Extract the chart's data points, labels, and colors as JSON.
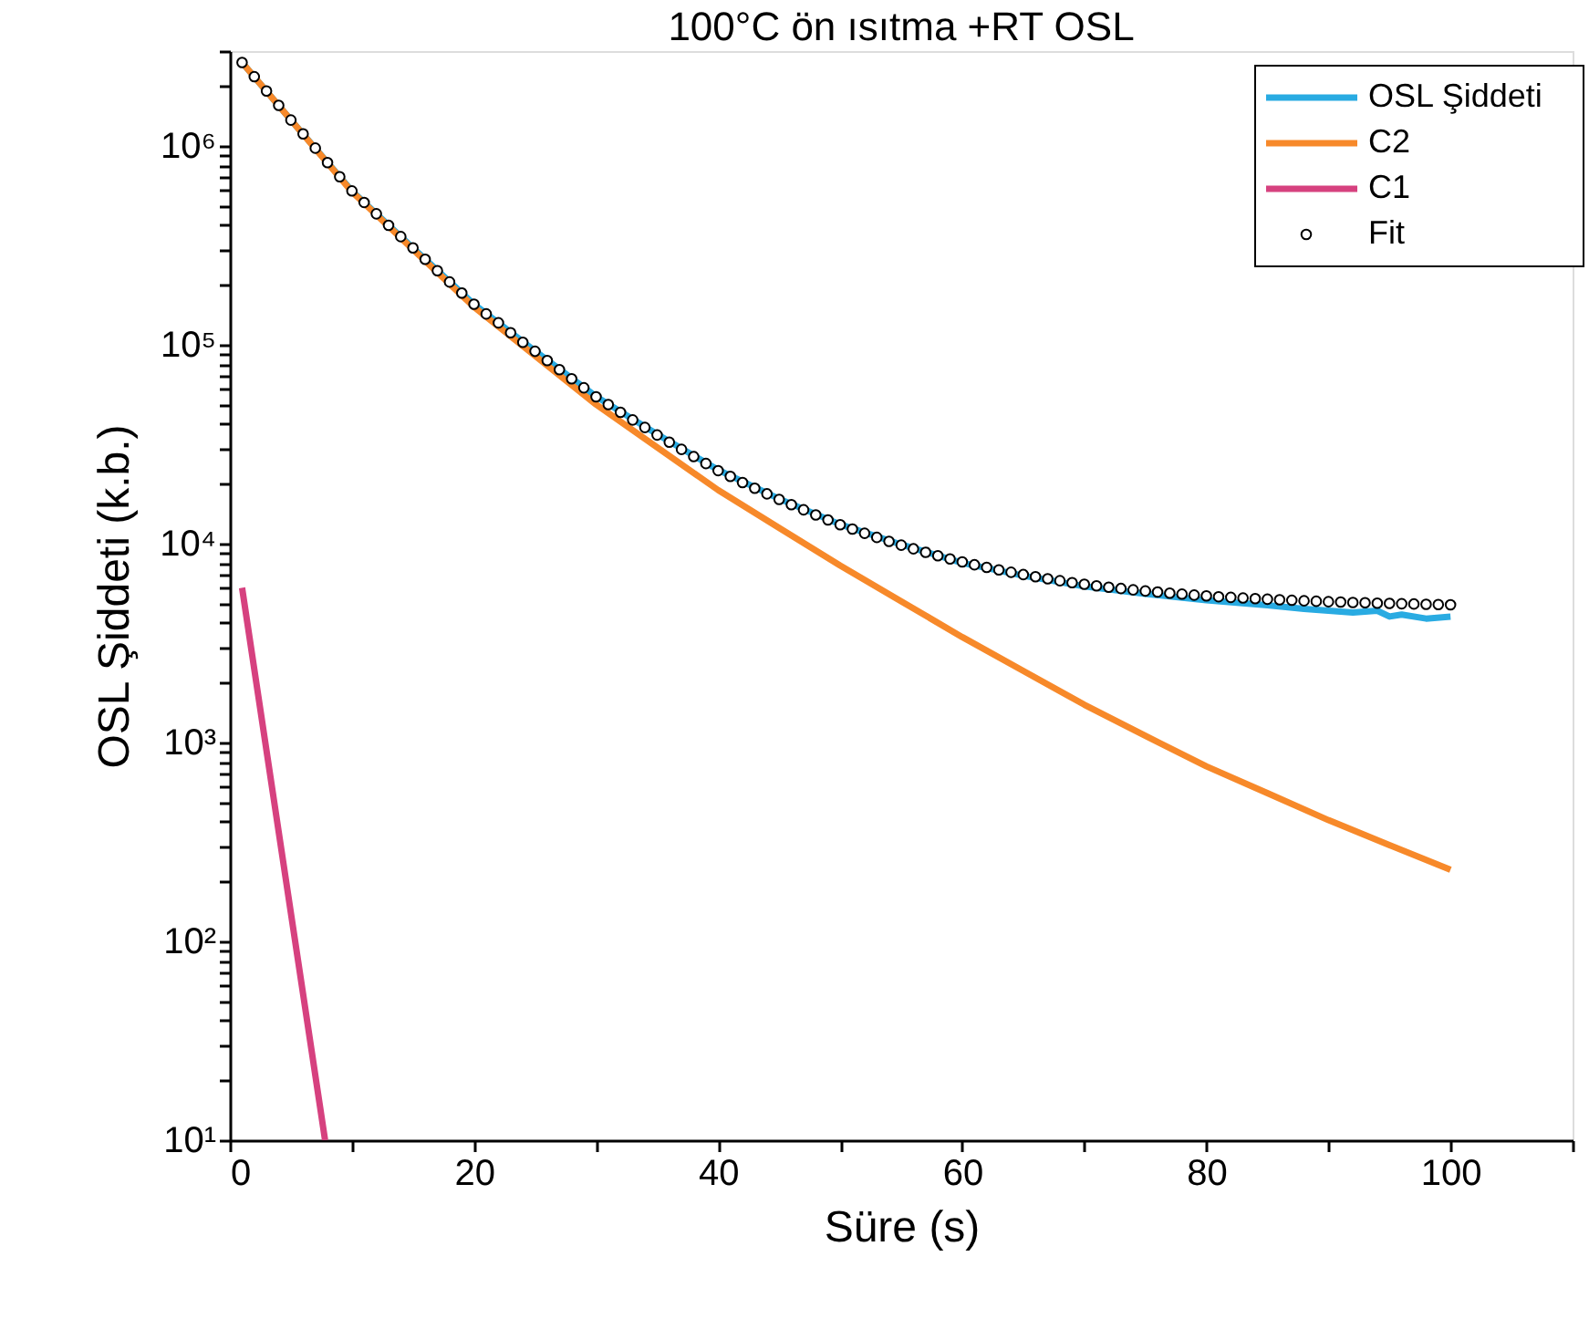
{
  "chart_data": {
    "type": "line",
    "title": "100°C ön ısıtma +RT OSL",
    "xlabel": "Süre (s)",
    "ylabel": "OSL Şiddeti (k.b.)",
    "log": "y",
    "grid": false,
    "legend": "top right",
    "xlim": [
      0,
      110
    ],
    "xticks": [
      0,
      {
        "value": 10,
        "label": null
      },
      20,
      {
        "value": 30,
        "label": null
      },
      40,
      {
        "value": 50,
        "label": null
      },
      60,
      {
        "value": 70,
        "label": null
      },
      80,
      {
        "value": 90,
        "label": null
      },
      100,
      {
        "value": 110,
        "label": null
      }
    ],
    "ylim": [
      10,
      3000000
    ],
    "yticks": [
      {
        "value": 10,
        "label": "10¹"
      },
      {
        "value": 20,
        "label": null
      },
      {
        "value": 30,
        "label": null
      },
      {
        "value": 40,
        "label": null
      },
      {
        "value": 50,
        "label": null
      },
      {
        "value": 60,
        "label": null
      },
      {
        "value": 70,
        "label": null
      },
      {
        "value": 80,
        "label": null
      },
      {
        "value": 90,
        "label": null
      },
      {
        "value": 100,
        "label": "10²"
      },
      {
        "value": 200,
        "label": null
      },
      {
        "value": 300,
        "label": null
      },
      {
        "value": 400,
        "label": null
      },
      {
        "value": 500,
        "label": null
      },
      {
        "value": 600,
        "label": null
      },
      {
        "value": 700,
        "label": null
      },
      {
        "value": 800,
        "label": null
      },
      {
        "value": 900,
        "label": null
      },
      {
        "value": 1000,
        "label": "10³"
      },
      {
        "value": 2000,
        "label": null
      },
      {
        "value": 3000,
        "label": null
      },
      {
        "value": 4000,
        "label": null
      },
      {
        "value": 5000,
        "label": null
      },
      {
        "value": 6000,
        "label": null
      },
      {
        "value": 7000,
        "label": null
      },
      {
        "value": 8000,
        "label": null
      },
      {
        "value": 9000,
        "label": null
      },
      {
        "value": 10000,
        "label": "10⁴"
      },
      {
        "value": 20000,
        "label": null
      },
      {
        "value": 30000,
        "label": null
      },
      {
        "value": 40000,
        "label": null
      },
      {
        "value": 50000,
        "label": null
      },
      {
        "value": 60000,
        "label": null
      },
      {
        "value": 70000,
        "label": null
      },
      {
        "value": 80000,
        "label": null
      },
      {
        "value": 90000,
        "label": null
      },
      {
        "value": 100000,
        "label": "10⁵"
      },
      {
        "value": 200000,
        "label": null
      },
      {
        "value": 300000,
        "label": null
      },
      {
        "value": 400000,
        "label": null
      },
      {
        "value": 500000,
        "label": null
      },
      {
        "value": 600000,
        "label": null
      },
      {
        "value": 700000,
        "label": null
      },
      {
        "value": 800000,
        "label": null
      },
      {
        "value": 900000,
        "label": null
      },
      {
        "value": 1000000,
        "label": "10⁶"
      },
      {
        "value": 2000000,
        "label": null
      },
      {
        "value": 3000000,
        "label": null
      }
    ],
    "series": [
      {
        "name": "OSL Şiddeti",
        "color": "#29abe2",
        "x": [
          1,
          5,
          10,
          15,
          20,
          25,
          30,
          35,
          40,
          45,
          50,
          55,
          60,
          65,
          70,
          75,
          80,
          85,
          88,
          90,
          92,
          94,
          95,
          96,
          98,
          100
        ],
        "values": [
          2630000,
          1350000,
          594000,
          307000,
          160000,
          93000,
          55000,
          35500,
          23500,
          16800,
          12500,
          9900,
          8000,
          6900,
          6100,
          5600,
          5200,
          4900,
          4700,
          4600,
          4500,
          4600,
          4300,
          4400,
          4200,
          4300
        ]
      },
      {
        "name": "C2",
        "color": "#f7892a",
        "x": [
          1,
          5,
          10,
          15,
          20,
          25,
          30,
          35,
          40,
          45,
          50,
          55,
          60,
          65,
          70,
          75,
          80,
          85,
          90,
          95,
          100
        ],
        "values": [
          2630000,
          1350000,
          589000,
          302000,
          155000,
          88100,
          50100,
          30500,
          18600,
          12000,
          7760,
          5130,
          3390,
          2290,
          1550,
          1080,
          759,
          556,
          407,
          305,
          229
        ]
      },
      {
        "name": "C1",
        "color": "#d6417f",
        "x": [
          1,
          4,
          7.8
        ],
        "values": [
          6000,
          355,
          10
        ]
      },
      {
        "name": "Fit",
        "type": "scatter",
        "marker": "circle",
        "color": "#000000",
        "x": [
          1,
          2,
          3,
          4,
          5,
          6,
          7,
          8,
          9,
          10,
          11,
          12,
          13,
          14,
          15,
          16,
          17,
          18,
          19,
          20,
          21,
          22,
          23,
          24,
          25,
          26,
          27,
          28,
          29,
          30,
          31,
          32,
          33,
          34,
          35,
          36,
          37,
          38,
          39,
          40,
          41,
          42,
          43,
          44,
          45,
          46,
          47,
          48,
          49,
          50,
          51,
          52,
          53,
          54,
          55,
          56,
          57,
          58,
          59,
          60,
          61,
          62,
          63,
          64,
          65,
          66,
          67,
          68,
          69,
          70,
          71,
          72,
          73,
          74,
          75,
          76,
          77,
          78,
          79,
          80,
          81,
          82,
          83,
          84,
          85,
          86,
          87,
          88,
          89,
          90,
          91,
          92,
          93,
          94,
          95,
          96,
          97,
          98,
          99,
          100
        ],
        "values": [
          2630000,
          2230000,
          1890000,
          1600000,
          1350000,
          1150000,
          975000,
          825000,
          700000,
          594000,
          520000,
          456000,
          399000,
          350000,
          307000,
          269000,
          236000,
          207000,
          182000,
          160000,
          143000,
          129000,
          115000,
          103000,
          92800,
          83400,
          75000,
          67500,
          60800,
          54800,
          50100,
          45800,
          41900,
          38400,
          35200,
          32400,
          29800,
          27400,
          25300,
          23300,
          21800,
          20300,
          19000,
          17800,
          16700,
          15700,
          14800,
          13950,
          13170,
          12460,
          11840,
          11280,
          10750,
          10270,
          9830,
          9420,
          9050,
          8700,
          8380,
          8090,
          7830,
          7600,
          7380,
          7180,
          6990,
          6820,
          6660,
          6510,
          6370,
          6250,
          6140,
          6040,
          5950,
          5860,
          5780,
          5710,
          5640,
          5575,
          5515,
          5460,
          5410,
          5370,
          5330,
          5290,
          5256,
          5222,
          5191,
          5161,
          5134,
          5107,
          5085,
          5063,
          5043,
          5024,
          5005,
          4988,
          4972,
          4957,
          4943,
          4929
        ]
      }
    ]
  }
}
